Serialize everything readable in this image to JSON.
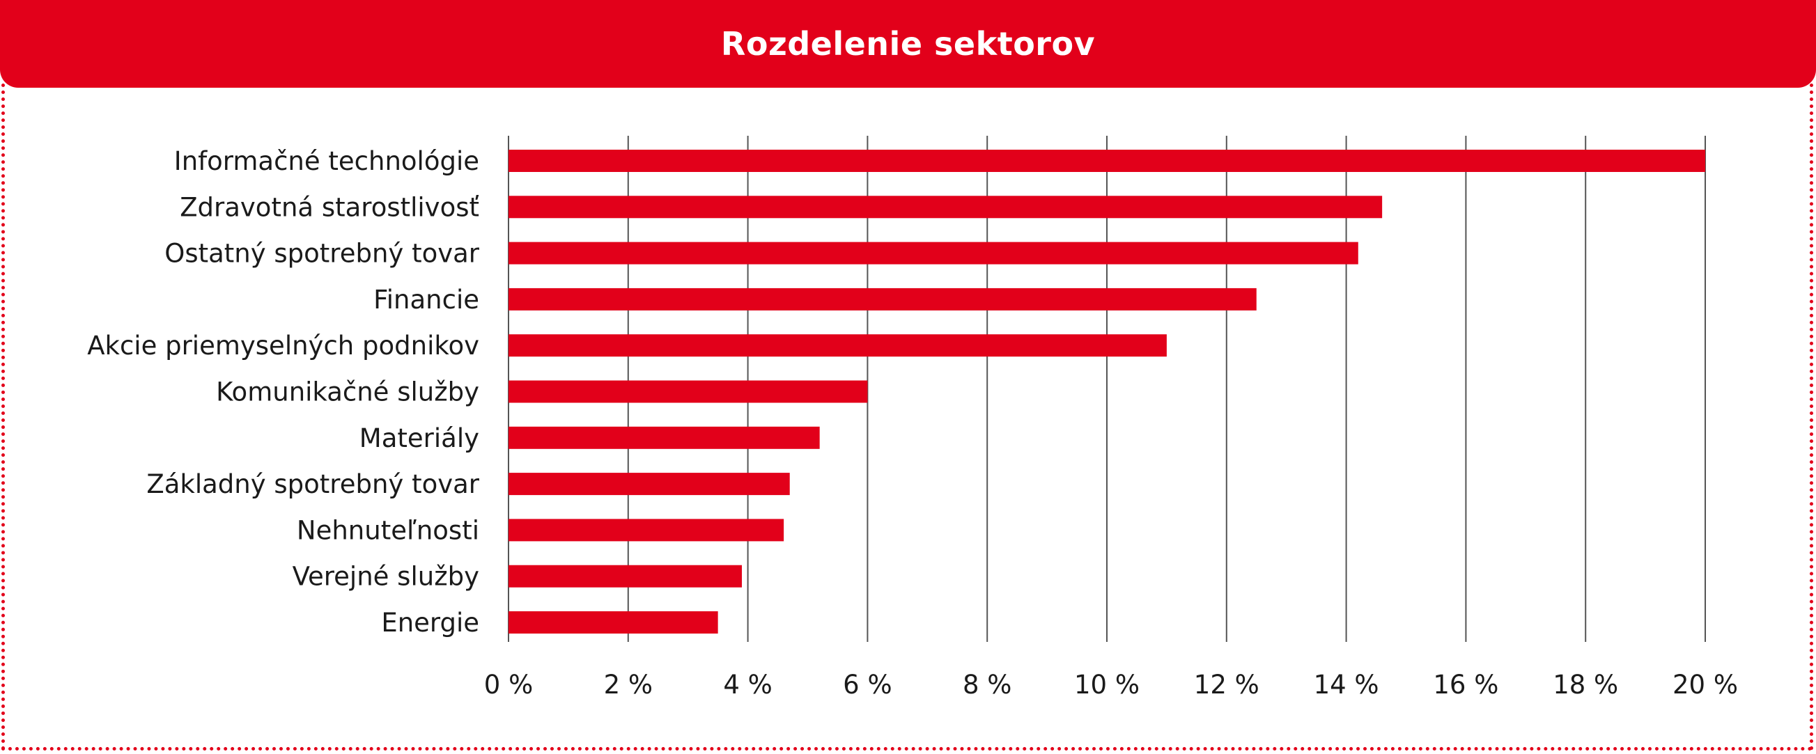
{
  "header": {
    "title": "Rozdelenie sektorov"
  },
  "colors": {
    "accent": "#e2001a",
    "grid": "#555555",
    "text": "#1a1a1a"
  },
  "chart_data": {
    "type": "bar",
    "orientation": "horizontal",
    "title": "Rozdelenie sektorov",
    "categories": [
      "Informačné technológie",
      "Zdravotná starostlivosť",
      "Ostatný spotrebný tovar",
      "Financie",
      "Akcie priemyselných podnikov",
      "Komunikačné služby",
      "Materiály",
      "Základný spotrebný tovar",
      "Nehnuteľnosti",
      "Verejné služby",
      "Energie"
    ],
    "values": [
      20.0,
      14.6,
      14.2,
      12.5,
      11.0,
      6.0,
      5.2,
      4.7,
      4.6,
      3.9,
      3.5
    ],
    "xlim": [
      0,
      20
    ],
    "xticks": [
      0,
      2,
      4,
      6,
      8,
      10,
      12,
      14,
      16,
      18,
      20
    ],
    "xtick_labels": [
      "0 %",
      "2 %",
      "4 %",
      "6 %",
      "8 %",
      "10 %",
      "12 %",
      "14 %",
      "16 %",
      "18 %",
      "20 %"
    ],
    "grid": "vertical",
    "xlabel": "",
    "ylabel": ""
  }
}
